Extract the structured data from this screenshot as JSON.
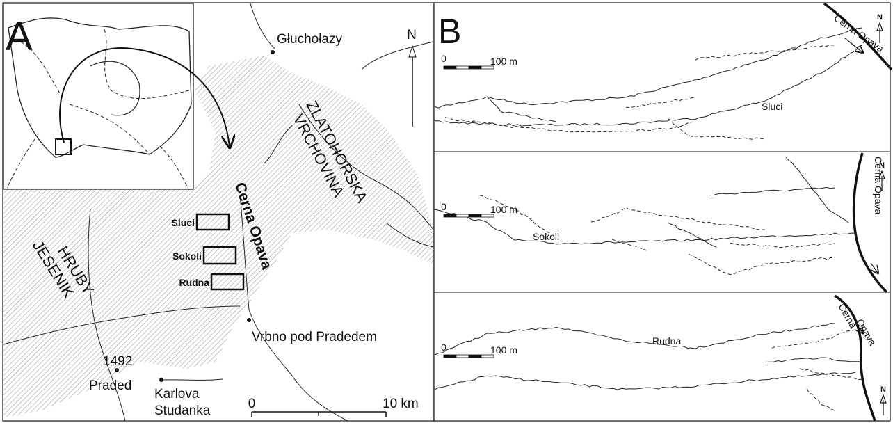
{
  "panel_a": {
    "label": "A",
    "north": "N",
    "places": [
      "Głuchołazy",
      "Vrbno pod Pradedem"
    ],
    "peak": {
      "elevation": "1492",
      "name": "Praded"
    },
    "karlova": [
      "Karlova",
      "Studanka"
    ],
    "regions": {
      "zlatohorska": [
        "ZLATOHORSKA",
        "VRCHOVINA"
      ],
      "hruby": [
        "HRUBY",
        "JESENIK"
      ]
    },
    "river": "Cerna Opava",
    "sites": [
      "Sluci",
      "Sokoli",
      "Rudna"
    ],
    "scale": {
      "start": "0",
      "end": "10 km"
    }
  },
  "panel_b": {
    "label": "B",
    "sites": [
      {
        "name": "Sluci",
        "river": [
          "Cerna Opava"
        ],
        "scale_start": "0",
        "scale_end": "100 m",
        "north": "N"
      },
      {
        "name": "Sokoli",
        "river": [
          "Cerna Opava"
        ],
        "scale_start": "0",
        "scale_end": "100 m",
        "north": "N"
      },
      {
        "name": "Rudna",
        "river": [
          "Cerna",
          "Opava"
        ],
        "scale_start": "0",
        "scale_end": "100 m",
        "north": "N"
      }
    ]
  }
}
